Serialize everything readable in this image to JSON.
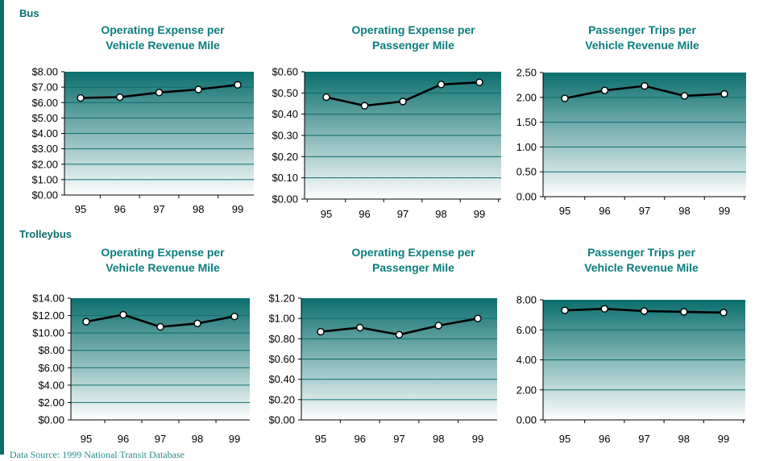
{
  "sections": [
    {
      "label": "Bus"
    },
    {
      "label": "Trolleybus"
    }
  ],
  "footer": {
    "note": "Data Source: 1999 National Transit Database"
  },
  "chart_data": [
    {
      "type": "line",
      "section": "Bus",
      "title": "Operating Expense per Vehicle Revenue Mile",
      "title_lines": [
        "Operating Expense per",
        "Vehicle Revenue Mile"
      ],
      "categories": [
        "95",
        "96",
        "97",
        "98",
        "99"
      ],
      "values": [
        6.3,
        6.35,
        6.65,
        6.85,
        7.15
      ],
      "ylim": [
        0,
        8
      ],
      "ystep": 1,
      "yformat": "$0.00",
      "grid": true
    },
    {
      "type": "line",
      "section": "Bus",
      "title": "Operating Expense per Passenger Mile",
      "title_lines": [
        "Operating Expense per",
        "Passenger Mile"
      ],
      "categories": [
        "95",
        "96",
        "97",
        "98",
        "99"
      ],
      "values": [
        0.48,
        0.44,
        0.46,
        0.54,
        0.55
      ],
      "ylim": [
        0,
        0.6
      ],
      "ystep": 0.1,
      "yformat": "$0.00",
      "grid": true
    },
    {
      "type": "line",
      "section": "Bus",
      "title": "Passenger Trips per Vehicle Revenue Mile",
      "title_lines": [
        "Passenger Trips per",
        "Vehicle Revenue Mile"
      ],
      "categories": [
        "95",
        "96",
        "97",
        "98",
        "99"
      ],
      "values": [
        1.98,
        2.14,
        2.23,
        2.03,
        2.07
      ],
      "ylim": [
        0,
        2.5
      ],
      "ystep": 0.5,
      "yformat": "0.00",
      "grid": true
    },
    {
      "type": "line",
      "section": "Trolleybus",
      "title": "Operating Expense per Vehicle Revenue Mile",
      "title_lines": [
        "Operating Expense per",
        "Vehicle Revenue Mile"
      ],
      "categories": [
        "95",
        "96",
        "97",
        "98",
        "99"
      ],
      "values": [
        11.3,
        12.1,
        10.7,
        11.1,
        11.9
      ],
      "ylim": [
        0,
        14
      ],
      "ystep": 2,
      "yformat": "$0.00",
      "grid": true
    },
    {
      "type": "line",
      "section": "Trolleybus",
      "title": "Operating Expense per Passenger Mile",
      "title_lines": [
        "Operating Expense per",
        "Passenger Mile"
      ],
      "categories": [
        "95",
        "96",
        "97",
        "98",
        "99"
      ],
      "values": [
        0.87,
        0.91,
        0.84,
        0.93,
        1.0
      ],
      "ylim": [
        0,
        1.2
      ],
      "ystep": 0.2,
      "yformat": "$0.00",
      "grid": true
    },
    {
      "type": "line",
      "section": "Trolleybus",
      "title": "Passenger Trips per Vehicle Revenue Mile",
      "title_lines": [
        "Passenger Trips per",
        "Vehicle Revenue Mile"
      ],
      "categories": [
        "95",
        "96",
        "97",
        "98",
        "99"
      ],
      "values": [
        7.3,
        7.4,
        7.25,
        7.2,
        7.15
      ],
      "ylim": [
        0,
        8
      ],
      "ystep": 2,
      "yformat": "0.00",
      "grid": true
    }
  ],
  "colors": {
    "accent": "#0b6e6e",
    "title": "#0b7d7d",
    "plot_top": "#0b6e6e",
    "plot_bottom": "#ffffff",
    "line": "#000000"
  }
}
